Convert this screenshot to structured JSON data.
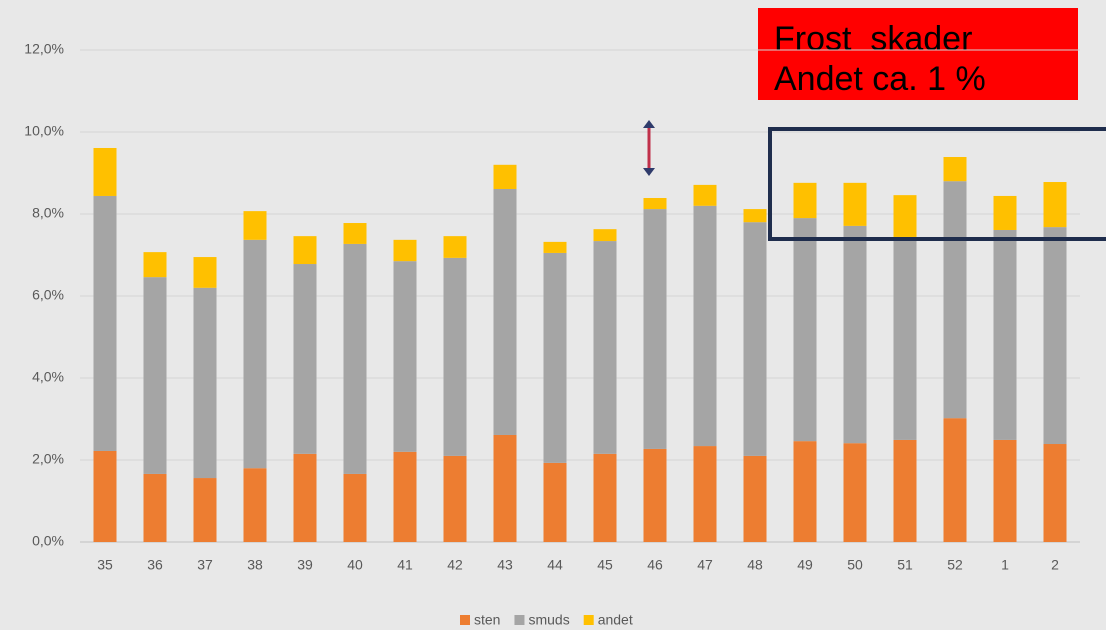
{
  "chart_data": {
    "type": "stacked_bar",
    "categories": [
      "35",
      "36",
      "37",
      "38",
      "39",
      "40",
      "41",
      "42",
      "43",
      "44",
      "45",
      "46",
      "47",
      "48",
      "49",
      "50",
      "51",
      "52",
      "1",
      "2"
    ],
    "series": [
      {
        "name": "sten",
        "color": "#ed7d31",
        "values": [
          2.22,
          1.66,
          1.56,
          1.8,
          2.15,
          1.66,
          2.2,
          2.1,
          2.61,
          1.93,
          2.15,
          2.27,
          2.34,
          2.1,
          2.46,
          2.41,
          2.49,
          3.02,
          2.49,
          2.39
        ]
      },
      {
        "name": "smuds",
        "color": "#a5a5a5",
        "values": [
          6.22,
          4.8,
          4.64,
          5.57,
          4.63,
          5.61,
          4.65,
          4.83,
          6.0,
          5.12,
          5.19,
          5.85,
          5.86,
          5.7,
          5.44,
          5.3,
          4.95,
          5.78,
          5.12,
          5.29
        ]
      },
      {
        "name": "andet",
        "color": "#ffc000",
        "values": [
          1.17,
          0.61,
          0.75,
          0.7,
          0.68,
          0.51,
          0.52,
          0.53,
          0.59,
          0.27,
          0.29,
          0.27,
          0.51,
          0.32,
          0.86,
          1.05,
          1.02,
          0.59,
          0.83,
          1.1
        ]
      }
    ],
    "ylim": [
      0,
      12
    ],
    "yticks": [
      {
        "value": 0,
        "label": "0,0%"
      },
      {
        "value": 2,
        "label": "2,0%"
      },
      {
        "value": 4,
        "label": "4,0%"
      },
      {
        "value": 6,
        "label": "6,0%"
      },
      {
        "value": 8,
        "label": "8,0%"
      },
      {
        "value": 10,
        "label": "10,0%"
      },
      {
        "value": 12,
        "label": "12,0%"
      }
    ],
    "grid": true,
    "legend": "bottom",
    "annotation": [
      "Frost  skader",
      "Andet ca. 1 %"
    ]
  }
}
